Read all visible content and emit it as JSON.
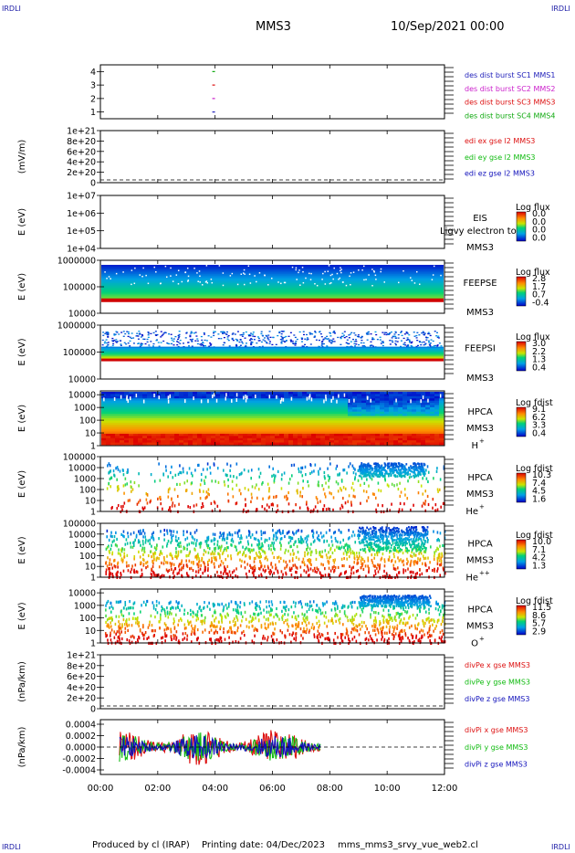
{
  "header": {
    "corner_tl": "IRDLI",
    "corner_tr": "IRDLI",
    "corner_bl": "IRDLI",
    "corner_br": "IRDLI",
    "title": "MMS3",
    "date": "10/Sep/2021 00:00"
  },
  "footer": {
    "produced_by": "Produced by cl (IRAP)",
    "printing_date": "Printing date: 04/Dec/2023",
    "file": "mms_mms3_srvy_vue_web2.cl"
  },
  "colors": {
    "sc1": "#2222bb",
    "sc2": "#cc22cc",
    "sc3": "#dd1111",
    "sc4": "#11aa11",
    "x": "#dd1111",
    "y": "#11bb11",
    "z": "#1111bb"
  },
  "chart_data": [
    {
      "type": "line",
      "panel": "burst",
      "y_ticks": [
        "1",
        "2",
        "3",
        "4"
      ],
      "ylim": [
        0.5,
        4.5
      ],
      "legend": [
        "des dist burst SC1 MMS1",
        "des dist burst SC2 MMS2",
        "des dist burst SC3 MMS3",
        "des dist burst SC4 MMS4"
      ],
      "series": [
        {
          "name": "des dist burst SC4 MMS4",
          "x": [
            "03:57"
          ],
          "y": [
            4
          ]
        },
        {
          "name": "des dist burst SC3 MMS3",
          "x": [
            "03:57"
          ],
          "y": [
            3
          ]
        },
        {
          "name": "des dist burst SC2 MMS2",
          "x": [
            "03:57"
          ],
          "y": [
            2
          ]
        },
        {
          "name": "des dist burst SC1 MMS1",
          "x": [
            "03:57"
          ],
          "y": [
            1
          ]
        }
      ]
    },
    {
      "type": "line",
      "panel": "edi",
      "ylabel": "(mV/m)",
      "y_ticks": [
        "0",
        "2e+20",
        "4e+20",
        "6e+20",
        "8e+20",
        "1e+21"
      ],
      "ylim": [
        0,
        1e+21
      ],
      "legend": [
        "edi ex gse l2 MMS3",
        "edi ey gse l2 MMS3",
        "edi ez gse l2 MMS3"
      ]
    },
    {
      "type": "heatmap",
      "panel": "eis",
      "ylabel": "E (eV)",
      "y_ticks": [
        "1e+04",
        "1e+05",
        "1e+06",
        "1e+07"
      ],
      "ylim": [
        10000,
        10000000
      ],
      "instrument": "EIS",
      "spacecraft": "MMS3",
      "overlay": "Ligvy electron to",
      "colorbar_title": "Log flux",
      "colorbar_ticks": [
        "0.0",
        "0.0",
        "0.0",
        "0.0"
      ]
    },
    {
      "type": "heatmap",
      "panel": "feepse",
      "ylabel": "E (eV)",
      "y_ticks": [
        "10000",
        "100000",
        "1000000"
      ],
      "ylim": [
        10000,
        1000000
      ],
      "instrument": "FEEPSE",
      "spacecraft": "MMS3",
      "colorbar_title": "Log flux",
      "colorbar_ticks": [
        "2.8",
        "1.7",
        "0.7",
        "-0.4"
      ],
      "time_range": [
        "00:00",
        "12:00"
      ]
    },
    {
      "type": "heatmap",
      "panel": "feepsi",
      "ylabel": "E (eV)",
      "y_ticks": [
        "10000",
        "100000",
        "1000000"
      ],
      "ylim": [
        10000,
        1000000
      ],
      "instrument": "FEEPSI",
      "spacecraft": "MMS3",
      "colorbar_title": "Log flux",
      "colorbar_ticks": [
        "3.0",
        "2.2",
        "1.3",
        "0.4"
      ],
      "time_range": [
        "00:00",
        "12:00"
      ]
    },
    {
      "type": "heatmap",
      "panel": "hpca_h",
      "ylabel": "E (eV)",
      "y_ticks": [
        "1",
        "10",
        "100",
        "1000",
        "10000"
      ],
      "ylim": [
        1,
        20000
      ],
      "instrument": "HPCA",
      "spacecraft": "MMS3",
      "species": "H",
      "charge": "+",
      "colorbar_title": "Log fdist",
      "colorbar_ticks": [
        "9.1",
        "6.2",
        "3.3",
        "0.4"
      ]
    },
    {
      "type": "heatmap",
      "panel": "hpca_he",
      "ylabel": "E (eV)",
      "y_ticks": [
        "1",
        "10",
        "100",
        "1000",
        "10000",
        "100000"
      ],
      "ylim": [
        1,
        100000
      ],
      "instrument": "HPCA",
      "spacecraft": "MMS3",
      "species": "He",
      "charge": "+",
      "colorbar_title": "Log fdist",
      "colorbar_ticks": [
        "10.3",
        "7.4",
        "4.5",
        "1.6"
      ]
    },
    {
      "type": "heatmap",
      "panel": "hpca_hepp",
      "ylabel": "E (eV)",
      "y_ticks": [
        "1",
        "10",
        "100",
        "1000",
        "10000",
        "100000"
      ],
      "ylim": [
        1,
        100000
      ],
      "instrument": "HPCA",
      "spacecraft": "MMS3",
      "species": "He",
      "charge": "++",
      "colorbar_title": "Log fdist",
      "colorbar_ticks": [
        "10.0",
        "7.1",
        "4.2",
        "1.3"
      ]
    },
    {
      "type": "heatmap",
      "panel": "hpca_o",
      "ylabel": "E (eV)",
      "y_ticks": [
        "1",
        "10",
        "100",
        "1000",
        "10000"
      ],
      "ylim": [
        1,
        20000
      ],
      "instrument": "HPCA",
      "spacecraft": "MMS3",
      "species": "O",
      "charge": "+",
      "colorbar_title": "Log fdist",
      "colorbar_ticks": [
        "11.5",
        "8.6",
        "5.7",
        "2.9"
      ]
    },
    {
      "type": "line",
      "panel": "divpe",
      "ylabel": "(nPa/km)",
      "y_ticks": [
        "0",
        "2e+20",
        "4e+20",
        "6e+20",
        "8e+20",
        "1e+21"
      ],
      "ylim": [
        0,
        1e+21
      ],
      "legend": [
        "divPe x gse MMS3",
        "divPe y gse MMS3",
        "divPe z gse MMS3"
      ]
    },
    {
      "type": "line",
      "panel": "divpi",
      "ylabel": "(nPa/km)",
      "y_ticks": [
        "-0.0004",
        "-0.0002",
        "0.0000",
        "0.0002",
        "0.0004"
      ],
      "ylim": [
        -0.00048,
        0.00048
      ],
      "legend": [
        "divPi x gse MMS3",
        "divPi y gse MMS3",
        "divPi z gse MMS3"
      ],
      "time_range": [
        "00:40",
        "07:40"
      ]
    }
  ],
  "x_axis": {
    "ticks": [
      "00:00",
      "02:00",
      "04:00",
      "06:00",
      "08:00",
      "10:00",
      "12:00"
    ],
    "range_hours": [
      0,
      12
    ]
  }
}
